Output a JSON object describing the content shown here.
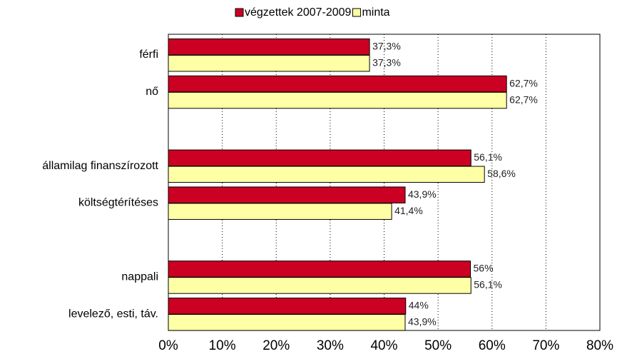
{
  "chart_data": {
    "type": "bar",
    "orientation": "horizontal",
    "categories": [
      "férfi",
      "nő",
      null,
      "államilag finanszírozott",
      "költségtérítéses",
      null,
      "nappali",
      "levelező, esti, táv."
    ],
    "series": [
      {
        "name": "végzettek 2007-2009",
        "color": "#cc0022",
        "values": [
          37.3,
          62.7,
          null,
          56.1,
          43.9,
          null,
          56,
          44
        ],
        "value_labels": [
          "37,3%",
          "62,7%",
          null,
          "56,1%",
          "43,9%",
          null,
          "56%",
          "44%"
        ]
      },
      {
        "name": "minta",
        "color": "#ffffa6",
        "values": [
          37.3,
          62.7,
          null,
          58.6,
          41.4,
          null,
          56.1,
          43.9
        ],
        "value_labels": [
          "37,3%",
          "62,7%",
          null,
          "58,6%",
          "41,4%",
          null,
          "56,1%",
          "43,9%"
        ]
      }
    ],
    "xlim": [
      0,
      80
    ],
    "xticks": [
      {
        "value": 0,
        "label": "0%"
      },
      {
        "value": 10,
        "label": "10%"
      },
      {
        "value": 20,
        "label": "20%"
      },
      {
        "value": 30,
        "label": "30%"
      },
      {
        "value": 40,
        "label": "40%"
      },
      {
        "value": 50,
        "label": "50%"
      },
      {
        "value": 60,
        "label": "60%"
      },
      {
        "value": 70,
        "label": "70%"
      },
      {
        "value": 80,
        "label": "80%"
      }
    ],
    "grid": true,
    "legend": "top"
  }
}
